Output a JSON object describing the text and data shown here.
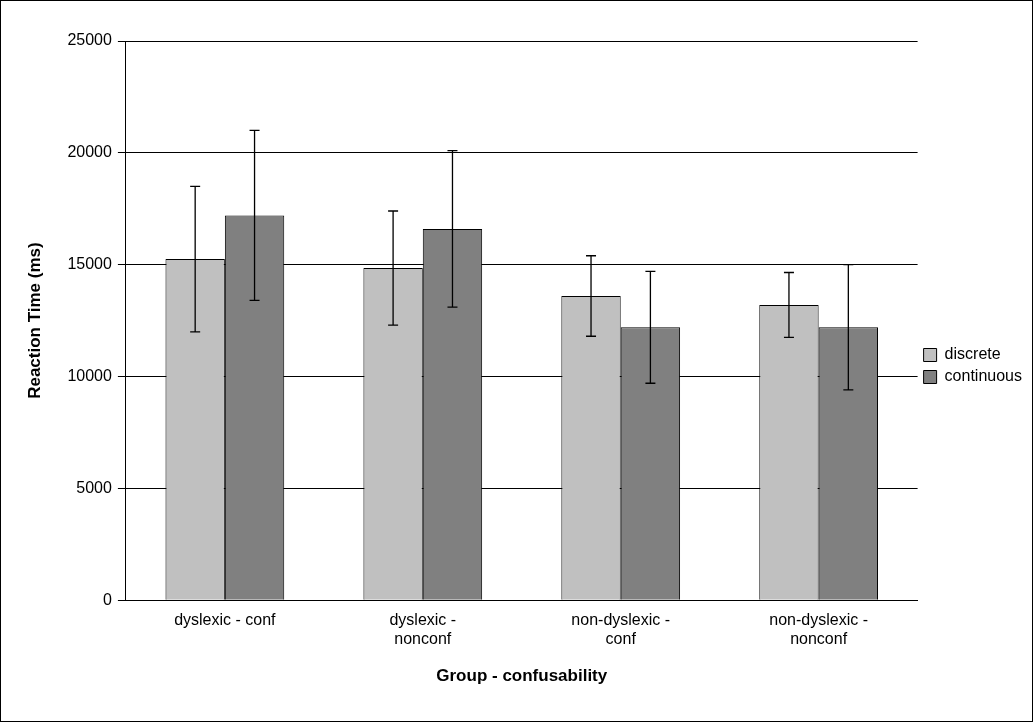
{
  "chart_data": {
    "type": "bar",
    "xlabel": "Group - confusability",
    "ylabel": "Reaction Time (ms)",
    "categories": [
      "dyslexic - conf",
      "dyslexic - nonconf",
      "non-dyslexic - conf",
      "non-dyslexic - nonconf"
    ],
    "series": [
      {
        "name": "discrete",
        "color": "#c0c0c0",
        "values": [
          15250,
          14850,
          13600,
          13200
        ],
        "errors": [
          3250,
          2550,
          1800,
          1450
        ]
      },
      {
        "name": "continuous",
        "color": "#808080",
        "values": [
          17200,
          16600,
          12200,
          12200
        ],
        "errors": [
          3800,
          3500,
          2500,
          2800
        ]
      }
    ],
    "ylim": [
      0,
      25000
    ],
    "yticks": [
      0,
      5000,
      10000,
      15000,
      20000,
      25000
    ],
    "grid": "y",
    "legend": "right"
  }
}
